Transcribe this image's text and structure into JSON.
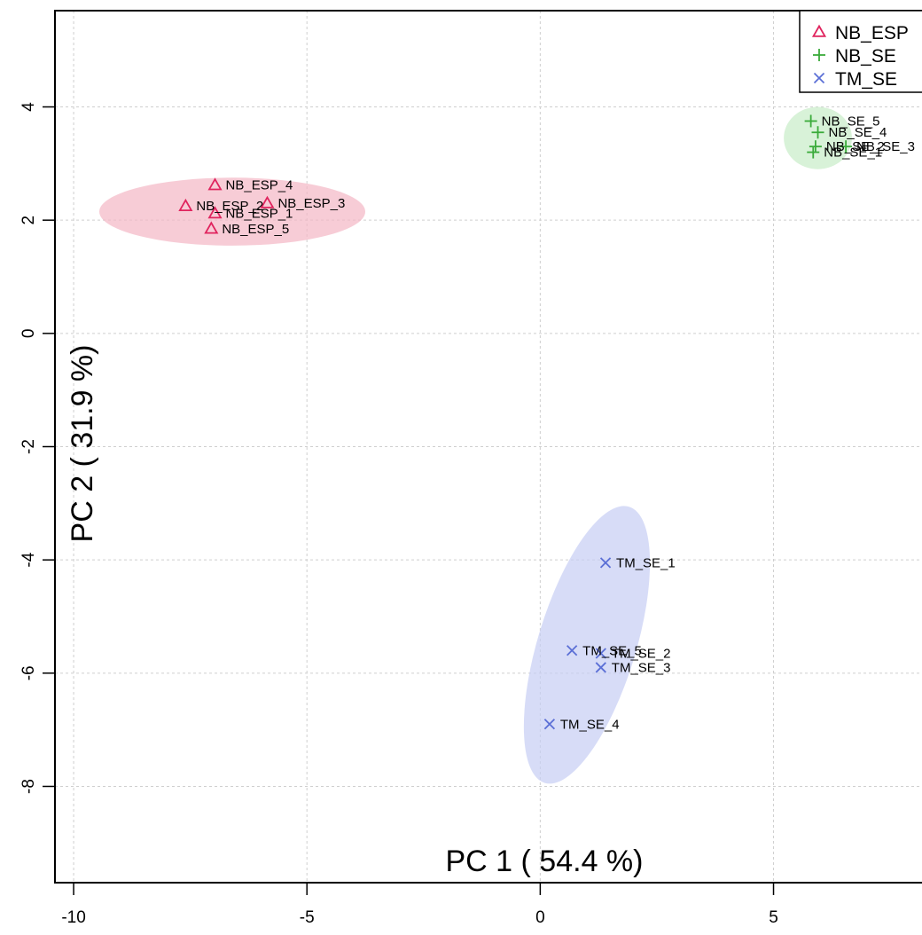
{
  "chart_data": {
    "type": "scatter",
    "xlabel": "PC 1 ( 54.4 %)",
    "ylabel": "PC 2 ( 31.9 %)",
    "xlim": [
      -10.4,
      8.6
    ],
    "ylim": [
      -9.7,
      5.7
    ],
    "xticks": [
      -10,
      -5,
      0,
      5
    ],
    "yticks": [
      -8,
      -6,
      -4,
      -2,
      0,
      2,
      4
    ],
    "grid": true,
    "legend_position": "top-right",
    "series": [
      {
        "name": "NB_ESP",
        "marker": "triangle",
        "color": "#e0245e",
        "ellipse_color": "#f4b6c4",
        "ellipse": {
          "cx": -6.6,
          "cy": 2.15,
          "rx": 2.85,
          "ry": 0.6,
          "angle_deg": 0
        },
        "points": [
          {
            "label": "NB_ESP_4",
            "x": -6.97,
            "y": 2.62
          },
          {
            "label": "NB_ESP_2",
            "x": -7.6,
            "y": 2.25
          },
          {
            "label": "NB_ESP_1",
            "x": -6.97,
            "y": 2.12
          },
          {
            "label": "NB_ESP_3",
            "x": -5.85,
            "y": 2.3
          },
          {
            "label": "NB_ESP_5",
            "x": -7.05,
            "y": 1.85
          }
        ]
      },
      {
        "name": "NB_SE",
        "marker": "plus",
        "color": "#3aab3a",
        "ellipse_color": "#c8ecc8",
        "ellipse": {
          "cx": 5.95,
          "cy": 3.45,
          "rx": 0.73,
          "ry": 0.55,
          "angle_deg": 0
        },
        "points": [
          {
            "label": "NB_SE_5",
            "x": 5.8,
            "y": 3.75
          },
          {
            "label": "NB_SE_4",
            "x": 5.95,
            "y": 3.55
          },
          {
            "label": "NB_SE_3",
            "x": 6.55,
            "y": 3.3
          },
          {
            "label": "NB_SE_2",
            "x": 5.9,
            "y": 3.3
          },
          {
            "label": "NB_SE_1",
            "x": 5.85,
            "y": 3.2
          }
        ]
      },
      {
        "name": "TM_SE",
        "marker": "cross",
        "color": "#5b6fd6",
        "ellipse_color": "#c6cdf3",
        "ellipse": {
          "cx": 1.0,
          "cy": -5.5,
          "rx": 1.05,
          "ry": 2.55,
          "angle_deg": 17
        },
        "points": [
          {
            "label": "TM_SE_1",
            "x": 1.4,
            "y": -4.05
          },
          {
            "label": "TM_SE_5",
            "x": 0.68,
            "y": -5.6
          },
          {
            "label": "TM_SE_2",
            "x": 1.3,
            "y": -5.65
          },
          {
            "label": "TM_SE_3",
            "x": 1.3,
            "y": -5.9
          },
          {
            "label": "TM_SE_4",
            "x": 0.2,
            "y": -6.9
          }
        ]
      }
    ]
  }
}
